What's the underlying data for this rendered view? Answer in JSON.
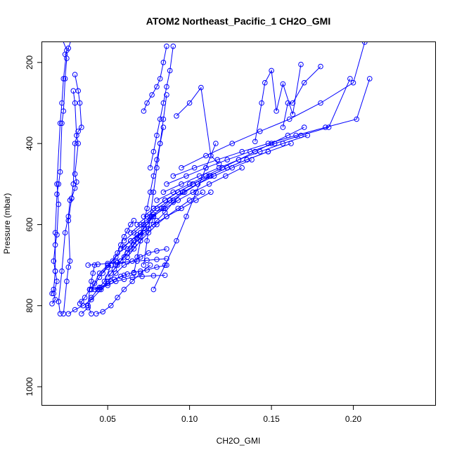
{
  "chart_data": {
    "type": "line",
    "title": "ATOM2 Northeast_Pacific_1 CH2O_GMI",
    "xlabel": "CH2O_GMI",
    "ylabel": "Pressure (mbar)",
    "xlim": [
      0.01,
      0.25
    ],
    "ylim": [
      1045,
      150
    ],
    "y_reversed": true,
    "grid": false,
    "x_ticks": [
      0.05,
      0.1,
      0.15,
      0.2
    ],
    "x_tick_labels": [
      "0.05",
      "0.10",
      "0.15",
      "0.20"
    ],
    "y_ticks": [
      200,
      400,
      600,
      800,
      1000
    ],
    "y_tick_labels": [
      "200",
      "400",
      "600",
      "800",
      "1000"
    ],
    "color": "#0000ff",
    "series": [
      {
        "x": [
          0.016,
          0.018,
          0.017,
          0.019,
          0.018,
          0.017,
          0.018,
          0.019,
          0.02,
          0.019,
          0.021,
          0.022,
          0.023,
          0.025,
          0.022,
          0.019
        ],
        "y": [
          795,
          785,
          770,
          740,
          715,
          690,
          650,
          625,
          550,
          500,
          350,
          300,
          240,
          170,
          140,
          120
        ]
      },
      {
        "x": [
          0.016,
          0.017,
          0.018,
          0.018,
          0.019,
          0.02,
          0.021,
          0.022,
          0.023,
          0.024,
          0.025,
          0.024,
          0.026,
          0.028,
          0.027
        ],
        "y": [
          770,
          760,
          715,
          620,
          525,
          500,
          470,
          350,
          320,
          240,
          190,
          180,
          165,
          140,
          120
        ]
      },
      {
        "x": [
          0.021,
          0.02,
          0.022,
          0.024,
          0.026,
          0.027,
          0.028,
          0.03,
          0.031,
          0.03,
          0.032,
          0.031,
          0.03,
          0.029
        ],
        "y": [
          820,
          790,
          715,
          620,
          580,
          540,
          535,
          510,
          495,
          475,
          400,
          380,
          300,
          270
        ]
      },
      {
        "x": [
          0.023,
          0.025,
          0.026,
          0.027,
          0.026,
          0.028,
          0.029,
          0.03,
          0.032,
          0.034,
          0.033,
          0.032,
          0.03
        ],
        "y": [
          820,
          740,
          705,
          690,
          590,
          535,
          500,
          400,
          370,
          360,
          300,
          270,
          230
        ]
      },
      {
        "x": [
          0.026,
          0.03,
          0.035,
          0.04,
          0.046,
          0.052,
          0.06
        ],
        "y": [
          820,
          810,
          800,
          785,
          760,
          740,
          725
        ]
      },
      {
        "x": [
          0.04,
          0.038,
          0.039,
          0.042,
          0.045,
          0.05,
          0.055
        ],
        "y": [
          820,
          800,
          760,
          745,
          720,
          700,
          690
        ]
      },
      {
        "x": [
          0.034,
          0.038,
          0.04,
          0.044,
          0.048,
          0.052
        ],
        "y": [
          820,
          805,
          780,
          760,
          740,
          700
        ]
      },
      {
        "x": [
          0.033,
          0.034,
          0.036,
          0.039,
          0.04,
          0.041,
          0.042
        ],
        "y": [
          795,
          790,
          780,
          760,
          740,
          720,
          700
        ]
      },
      {
        "x": [
          0.043,
          0.047,
          0.052,
          0.056,
          0.06,
          0.065,
          0.07,
          0.076
        ],
        "y": [
          820,
          815,
          800,
          780,
          760,
          740,
          720,
          700
        ]
      },
      {
        "x": [
          0.04,
          0.045,
          0.05,
          0.055,
          0.06,
          0.065,
          0.071,
          0.078,
          0.085
        ],
        "y": [
          760,
          755,
          750,
          740,
          735,
          730,
          728,
          726,
          725
        ]
      },
      {
        "x": [
          0.042,
          0.046,
          0.05,
          0.054,
          0.058,
          0.062,
          0.066,
          0.07,
          0.074,
          0.08,
          0.086
        ],
        "y": [
          760,
          755,
          745,
          735,
          728,
          722,
          718,
          715,
          712,
          705,
          700
        ]
      },
      {
        "x": [
          0.045,
          0.05,
          0.055,
          0.06,
          0.065,
          0.07,
          0.075,
          0.08,
          0.086
        ],
        "y": [
          760,
          740,
          720,
          700,
          690,
          680,
          670,
          665,
          660
        ]
      },
      {
        "x": [
          0.04,
          0.045,
          0.05,
          0.055,
          0.06,
          0.064,
          0.068,
          0.072
        ],
        "y": [
          760,
          730,
          700,
          680,
          655,
          640,
          625,
          620
        ]
      },
      {
        "x": [
          0.047,
          0.05,
          0.053,
          0.056,
          0.058,
          0.06,
          0.062,
          0.064,
          0.066
        ],
        "y": [
          720,
          705,
          690,
          670,
          650,
          630,
          615,
          600,
          590
        ]
      },
      {
        "x": [
          0.05,
          0.054,
          0.058,
          0.062,
          0.066,
          0.07,
          0.074,
          0.078
        ],
        "y": [
          730,
          710,
          690,
          660,
          640,
          620,
          600,
          580
        ]
      },
      {
        "x": [
          0.052,
          0.056,
          0.06,
          0.064,
          0.068,
          0.072,
          0.076
        ],
        "y": [
          720,
          700,
          680,
          660,
          635,
          610,
          590
        ]
      },
      {
        "x": [
          0.055,
          0.058,
          0.062,
          0.066,
          0.07,
          0.074,
          0.078,
          0.083,
          0.088
        ],
        "y": [
          700,
          690,
          670,
          650,
          620,
          600,
          575,
          560,
          540
        ]
      },
      {
        "x": [
          0.038,
          0.044,
          0.05,
          0.056,
          0.062,
          0.068,
          0.074,
          0.08,
          0.086
        ],
        "y": [
          700,
          698,
          696,
          694,
          692,
          690,
          688,
          686,
          684
        ]
      },
      {
        "x": [
          0.058,
          0.062,
          0.066,
          0.07,
          0.075,
          0.08,
          0.085,
          0.09,
          0.096
        ],
        "y": [
          690,
          670,
          650,
          630,
          610,
          590,
          570,
          545,
          520
        ]
      },
      {
        "x": [
          0.062,
          0.066,
          0.07,
          0.075,
          0.08,
          0.086,
          0.093,
          0.1,
          0.108
        ],
        "y": [
          680,
          660,
          640,
          620,
          600,
          580,
          560,
          540,
          520
        ]
      },
      {
        "x": [
          0.058,
          0.064,
          0.07,
          0.078,
          0.086,
          0.095,
          0.104,
          0.113
        ],
        "y": [
          660,
          640,
          620,
          600,
          580,
          560,
          540,
          520
        ]
      },
      {
        "x": [
          0.06,
          0.066,
          0.072,
          0.078,
          0.084,
          0.09,
          0.097,
          0.105,
          0.113
        ],
        "y": [
          640,
          620,
          600,
          580,
          560,
          540,
          520,
          500,
          480
        ]
      },
      {
        "x": [
          0.064,
          0.07,
          0.077,
          0.085,
          0.093,
          0.102,
          0.112,
          0.122,
          0.132
        ],
        "y": [
          620,
          600,
          580,
          560,
          540,
          520,
          500,
          480,
          460
        ]
      },
      {
        "x": [
          0.068,
          0.074,
          0.08,
          0.088,
          0.096,
          0.105,
          0.115,
          0.126,
          0.138
        ],
        "y": [
          600,
          580,
          560,
          540,
          520,
          500,
          480,
          460,
          440
        ]
      },
      {
        "x": [
          0.072,
          0.078,
          0.085,
          0.093,
          0.102,
          0.112,
          0.123,
          0.135,
          0.148
        ],
        "y": [
          580,
          560,
          540,
          520,
          500,
          480,
          460,
          440,
          420
        ]
      },
      {
        "x": [
          0.078,
          0.085,
          0.093,
          0.102,
          0.112,
          0.123,
          0.135,
          0.148,
          0.162
        ],
        "y": [
          560,
          540,
          520,
          500,
          480,
          460,
          440,
          420,
          400
        ]
      },
      {
        "x": [
          0.08,
          0.09,
          0.1,
          0.11,
          0.12,
          0.13,
          0.14,
          0.15,
          0.16,
          0.17
        ],
        "y": [
          540,
          520,
          500,
          480,
          460,
          440,
          420,
          400,
          380,
          360
        ]
      },
      {
        "x": [
          0.084,
          0.095,
          0.106,
          0.118,
          0.13,
          0.143,
          0.157,
          0.172
        ],
        "y": [
          520,
          500,
          480,
          460,
          440,
          420,
          400,
          380
        ]
      },
      {
        "x": [
          0.086,
          0.098,
          0.11,
          0.123,
          0.137,
          0.152,
          0.168,
          0.185,
          0.198
        ],
        "y": [
          500,
          480,
          460,
          440,
          420,
          400,
          380,
          360,
          240
        ]
      },
      {
        "x": [
          0.09,
          0.103,
          0.117,
          0.132,
          0.148,
          0.165,
          0.183,
          0.202,
          0.21
        ],
        "y": [
          480,
          460,
          440,
          420,
          400,
          380,
          360,
          340,
          240
        ]
      },
      {
        "x": [
          0.095,
          0.11,
          0.126,
          0.143,
          0.161,
          0.18,
          0.2,
          0.207
        ],
        "y": [
          460,
          430,
          400,
          370,
          340,
          300,
          250,
          150
        ]
      },
      {
        "x": [
          0.078,
          0.085,
          0.092,
          0.098,
          0.104,
          0.11,
          0.116
        ],
        "y": [
          760,
          700,
          640,
          580,
          520,
          460,
          400
        ]
      },
      {
        "x": [
          0.072,
          0.074,
          0.076,
          0.078,
          0.08,
          0.082,
          0.084,
          0.086
        ],
        "y": [
          700,
          640,
          580,
          520,
          460,
          400,
          340,
          280
        ]
      },
      {
        "x": [
          0.066,
          0.068,
          0.07,
          0.072,
          0.074,
          0.076,
          0.078,
          0.08,
          0.082,
          0.084
        ],
        "y": [
          720,
          680,
          640,
          600,
          560,
          520,
          480,
          440,
          400,
          360
        ]
      },
      {
        "x": [
          0.076,
          0.078,
          0.08,
          0.082,
          0.084,
          0.086,
          0.088,
          0.09
        ],
        "y": [
          460,
          420,
          380,
          340,
          300,
          260,
          220,
          160
        ]
      },
      {
        "x": [
          0.072,
          0.074,
          0.077,
          0.08,
          0.082,
          0.084,
          0.086
        ],
        "y": [
          320,
          300,
          280,
          260,
          240,
          200,
          160
        ]
      },
      {
        "x": [
          0.092,
          0.1,
          0.107,
          0.113,
          0.118
        ],
        "y": [
          332,
          300,
          262,
          430,
          450
        ]
      },
      {
        "x": [
          0.14,
          0.144,
          0.146,
          0.15,
          0.153,
          0.157,
          0.163,
          0.168
        ],
        "y": [
          395,
          300,
          250,
          220,
          320,
          253,
          328,
          205
        ]
      },
      {
        "x": [
          0.157,
          0.16,
          0.163,
          0.17,
          0.18
        ],
        "y": [
          360,
          300,
          300,
          250,
          210
        ]
      }
    ]
  }
}
